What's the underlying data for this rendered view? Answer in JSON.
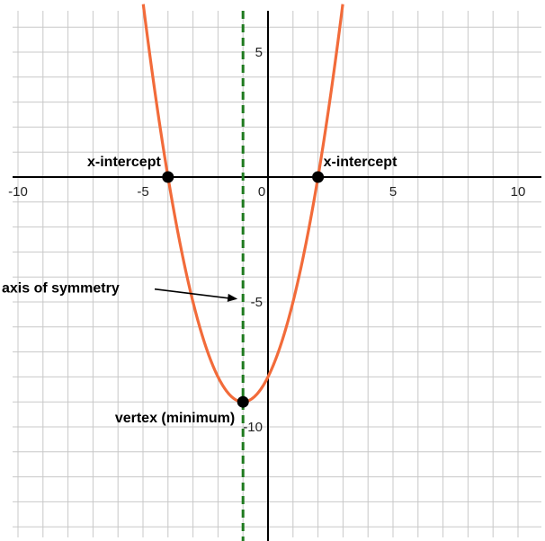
{
  "chart_data": {
    "type": "line",
    "title": "",
    "xlabel": "",
    "ylabel": "",
    "xlim": [
      -10.5,
      11
    ],
    "ylim": [
      -14.5,
      6.8
    ],
    "grid": true,
    "x_tick_labels": [
      "-10",
      "-5",
      "0",
      "5",
      "10"
    ],
    "x_ticks": [
      -10,
      -5,
      0,
      5,
      10
    ],
    "y_tick_labels": [
      "5",
      "-5",
      "-10"
    ],
    "y_ticks": [
      5,
      -5,
      -10
    ],
    "series": [
      {
        "equation": "y = (x + 1)^2 - 9",
        "x": [
          -5.0,
          -4.0,
          -3.0,
          -2.0,
          -1.0,
          0.0,
          1.0,
          2.0,
          3.0
        ],
        "y": [
          7,
          0,
          -5,
          -8,
          -9,
          -8,
          -5,
          0,
          7
        ],
        "color": "#f26b3a"
      }
    ],
    "axis_of_symmetry": {
      "x": -1,
      "color": "#1f7a1f"
    },
    "points": [
      {
        "x": -4,
        "y": 0
      },
      {
        "x": 2,
        "y": 0
      },
      {
        "x": -1,
        "y": -9
      }
    ],
    "annotations": [
      {
        "text": "x-intercept",
        "x": -4,
        "y": 0
      },
      {
        "text": "x-intercept",
        "x": 2,
        "y": 0
      },
      {
        "text": "axis of symmetry",
        "x": -1,
        "y": -4.7
      },
      {
        "text": "vertex (minimum)",
        "x": -1,
        "y": -9
      }
    ]
  }
}
